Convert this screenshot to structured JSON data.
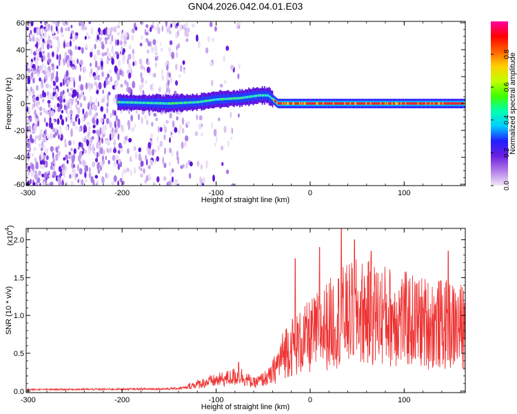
{
  "title": "GN04.2026.042.04.01.E03",
  "chart_data": [
    {
      "type": "heatmap",
      "xlabel": "Height of straight line (km)",
      "ylabel": "Frequency (Hz)",
      "xlim": [
        -302,
        165
      ],
      "ylim": [
        -61,
        61
      ],
      "xticks": [
        -300,
        -200,
        -100,
        0,
        100
      ],
      "yticks": [
        60,
        40,
        20,
        0,
        -20,
        -40,
        -60
      ],
      "ridge": {
        "description_values": "center frequency (Hz) of the bright signal band vs height (km)",
        "points": [
          [
            -205,
            1
          ],
          [
            -150,
            0
          ],
          [
            -120,
            1
          ],
          [
            -100,
            3
          ],
          [
            -75,
            4
          ],
          [
            -55,
            6
          ],
          [
            -45,
            6
          ],
          [
            -40,
            3
          ],
          [
            -35,
            0
          ],
          [
            0,
            0
          ],
          [
            100,
            0
          ],
          [
            165,
            0
          ]
        ]
      },
      "colorbar": {
        "label": "Normalized spectral amplitude",
        "range": [
          0,
          1
        ],
        "ticks": [
          "0.0",
          "0.2",
          "0.4",
          "0.6",
          "0.8"
        ],
        "colors": [
          "#f2e6f7",
          "#b07be8",
          "#6a1fe0",
          "#2020ff",
          "#00d0ff",
          "#00ffb0",
          "#40ff00",
          "#c0ff00",
          "#ffd000",
          "#ff6000",
          "#ff0000",
          "#ff00a0"
        ]
      }
    },
    {
      "type": "line",
      "xlabel": "Height of straight line (km)",
      "ylabel": "SNR (10 * v/v)",
      "yscale_label": "(x10",
      "yscale_exp": "4",
      "xlim": [
        -302,
        165
      ],
      "ylim": [
        -0.02,
        2.15
      ],
      "xticks": [
        -300,
        -200,
        -100,
        0,
        100
      ],
      "yticks": [
        "0.0",
        "0.5",
        "1.0",
        "1.5",
        "2.0"
      ],
      "ytick_values": [
        0,
        0.5,
        1.0,
        1.5,
        2.0
      ],
      "series": [
        {
          "color": "#ee3333",
          "envelope": [
            [
              -302,
              0.04
            ],
            [
              -200,
              0.05
            ],
            [
              -150,
              0.06
            ],
            [
              -130,
              0.09
            ],
            [
              -115,
              0.15
            ],
            [
              -100,
              0.2
            ],
            [
              -85,
              0.25
            ],
            [
              -75,
              0.3
            ],
            [
              -60,
              0.15
            ],
            [
              -40,
              0.3
            ],
            [
              -25,
              0.7
            ],
            [
              -10,
              0.8
            ],
            [
              0,
              0.9
            ],
            [
              20,
              1.1
            ],
            [
              30,
              1.2
            ],
            [
              50,
              1.3
            ],
            [
              80,
              1.25
            ],
            [
              110,
              1.15
            ],
            [
              140,
              1.1
            ],
            [
              165,
              1.05
            ]
          ],
          "peaks": [
            [
              -76,
              0.38
            ],
            [
              -16,
              1.75
            ],
            [
              10,
              1.9
            ],
            [
              33,
              2.15
            ],
            [
              47,
              2.0
            ],
            [
              65,
              1.85
            ],
            [
              147,
              1.85
            ]
          ]
        }
      ]
    }
  ]
}
